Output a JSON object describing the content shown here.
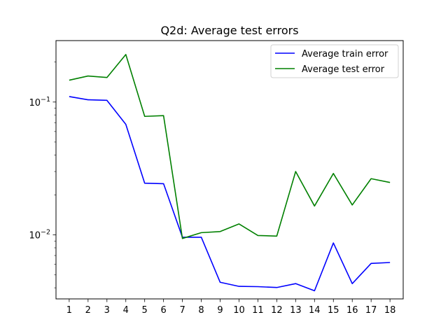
{
  "chart_data": {
    "type": "line",
    "title": "Q2d: Average test errors",
    "xlabel": "",
    "ylabel": "",
    "yscale": "log",
    "ylim": [
      0.0033,
      0.29
    ],
    "xlim": [
      0.3,
      18.7
    ],
    "x": [
      1,
      2,
      3,
      4,
      5,
      6,
      7,
      8,
      9,
      10,
      11,
      12,
      13,
      14,
      15,
      16,
      17,
      18
    ],
    "x_tick_labels": [
      "1",
      "2",
      "3",
      "4",
      "5",
      "6",
      "7",
      "8",
      "9",
      "10",
      "11",
      "12",
      "13",
      "14",
      "15",
      "16",
      "17",
      "18"
    ],
    "y_tick_labels": [
      {
        "value": 0.1,
        "base": "10",
        "exp": "−1"
      },
      {
        "value": 0.01,
        "base": "10",
        "exp": "−2"
      }
    ],
    "grid": false,
    "legend": "top-right",
    "series": [
      {
        "name": "Average train error",
        "color": "#0000ff",
        "values": [
          0.11,
          0.104,
          0.103,
          0.068,
          0.0245,
          0.0243,
          0.0096,
          0.0096,
          0.0044,
          0.0041,
          0.00408,
          0.00402,
          0.0043,
          0.0038,
          0.0087,
          0.0043,
          0.0061,
          0.0062
        ]
      },
      {
        "name": "Average test error",
        "color": "#008000",
        "values": [
          0.146,
          0.157,
          0.153,
          0.228,
          0.078,
          0.079,
          0.0094,
          0.0104,
          0.0106,
          0.0121,
          0.0099,
          0.0098,
          0.03,
          0.0165,
          0.029,
          0.0168,
          0.0265,
          0.0248
        ]
      }
    ]
  }
}
